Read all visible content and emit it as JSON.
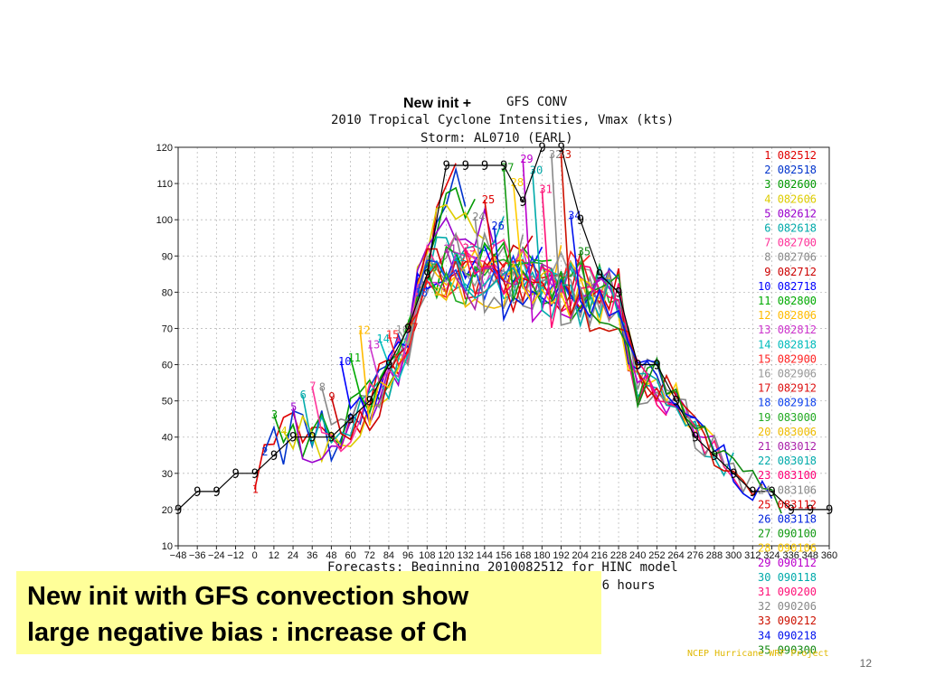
{
  "chart_data": {
    "type": "line",
    "title_prefix": "New init +",
    "title": "GFS CONV",
    "subtitle": "2010 Tropical Cyclone Intensities, Vmax (kts)",
    "storm": "Storm: AL0710 (EARL)",
    "xlabel": "Forecasts: Beginning 2010082512 for HINC model",
    "xlabel2": "Every 6 hours",
    "credit": "NCEP Hurricane WRF Project",
    "xlim": [
      -48,
      360
    ],
    "ylim": [
      10,
      120
    ],
    "x_ticks": [
      -48,
      -36,
      -24,
      -12,
      0,
      12,
      24,
      36,
      48,
      60,
      72,
      84,
      96,
      108,
      120,
      132,
      144,
      156,
      168,
      180,
      192,
      204,
      216,
      228,
      240,
      252,
      264,
      276,
      288,
      300,
      312,
      324,
      336,
      348,
      360
    ],
    "y_ticks": [
      10,
      20,
      30,
      40,
      50,
      60,
      70,
      80,
      90,
      100,
      110,
      120
    ],
    "grid": true,
    "legend_position": "right",
    "best_track": {
      "x": [
        -48,
        -36,
        -24,
        -12,
        0,
        12,
        24,
        36,
        48,
        60,
        72,
        84,
        96,
        108,
        120,
        132,
        144,
        156,
        168,
        180,
        192,
        204,
        216,
        228,
        240,
        252,
        264,
        276,
        288,
        300,
        312,
        324,
        336,
        348,
        360
      ],
      "y": [
        20,
        25,
        25,
        30,
        30,
        35,
        40,
        40,
        40,
        45,
        50,
        60,
        70,
        85,
        115,
        115,
        115,
        115,
        105,
        120,
        120,
        100,
        85,
        80,
        60,
        60,
        50,
        40,
        35,
        30,
        25,
        25,
        20,
        20,
        20
      ]
    },
    "series": [
      {
        "name": "1",
        "label": "082512",
        "color": "#e00000",
        "y0": 30,
        "peak": 112
      },
      {
        "name": "2",
        "label": "082518",
        "color": "#0033cc",
        "y0": 35,
        "peak": 108
      },
      {
        "name": "3",
        "label": "082600",
        "color": "#009900",
        "y0": 40,
        "peak": 104
      },
      {
        "name": "4",
        "label": "082606",
        "color": "#ddcc00",
        "y0": 40,
        "peak": 100
      },
      {
        "name": "5",
        "label": "082612",
        "color": "#9900cc",
        "y0": 45,
        "peak": 96
      },
      {
        "name": "6",
        "label": "082618",
        "color": "#00aaaa",
        "y0": 45,
        "peak": 94
      },
      {
        "name": "7",
        "label": "082700",
        "color": "#ff3399",
        "y0": 50,
        "peak": 92
      },
      {
        "name": "8",
        "label": "082706",
        "color": "#888888",
        "y0": 55,
        "peak": 90
      },
      {
        "name": "9",
        "label": "082712",
        "color": "#cc0000",
        "y0": 55,
        "peak": 89
      },
      {
        "name": "10",
        "label": "082718",
        "color": "#0000ff",
        "y0": 60,
        "peak": 88
      },
      {
        "name": "11",
        "label": "082800",
        "color": "#00aa00",
        "y0": 60,
        "peak": 87
      },
      {
        "name": "12",
        "label": "082806",
        "color": "#ffbb00",
        "y0": 65,
        "peak": 86
      },
      {
        "name": "13",
        "label": "082812",
        "color": "#cc33cc",
        "y0": 65,
        "peak": 86
      },
      {
        "name": "14",
        "label": "082818",
        "color": "#00bbbb",
        "y0": 70,
        "peak": 85
      },
      {
        "name": "15",
        "label": "082900",
        "color": "#ff2222",
        "y0": 70,
        "peak": 85
      },
      {
        "name": "16",
        "label": "082906",
        "color": "#999999",
        "y0": 75,
        "peak": 84
      },
      {
        "name": "17",
        "label": "082912",
        "color": "#dd1111",
        "y0": 75,
        "peak": 84
      },
      {
        "name": "18",
        "label": "082918",
        "color": "#1144ee",
        "y0": 80,
        "peak": 83
      },
      {
        "name": "19",
        "label": "083000",
        "color": "#22aa22",
        "y0": 80,
        "peak": 83
      },
      {
        "name": "20",
        "label": "083006",
        "color": "#eebb00",
        "y0": 85,
        "peak": 82
      },
      {
        "name": "21",
        "label": "083012",
        "color": "#aa22aa",
        "y0": 85,
        "peak": 82
      },
      {
        "name": "22",
        "label": "083018",
        "color": "#00aaaa",
        "y0": 90,
        "peak": 81
      },
      {
        "name": "23",
        "label": "083100",
        "color": "#ff0077",
        "y0": 90,
        "peak": 81
      },
      {
        "name": "24",
        "label": "083106",
        "color": "#888888",
        "y0": 95,
        "peak": 80
      },
      {
        "name": "25",
        "label": "083112",
        "color": "#dd0000",
        "y0": 100,
        "peak": 80
      },
      {
        "name": "26",
        "label": "083118",
        "color": "#0022dd",
        "y0": 105,
        "peak": 79
      },
      {
        "name": "27",
        "label": "090100",
        "color": "#119911",
        "y0": 110,
        "peak": 79
      },
      {
        "name": "28",
        "label": "090106",
        "color": "#ffcc00",
        "y0": 115,
        "peak": 78
      },
      {
        "name": "29",
        "label": "090112",
        "color": "#bb00cc",
        "y0": 115,
        "peak": 78
      },
      {
        "name": "30",
        "label": "090118",
        "color": "#00aaaa",
        "y0": 115,
        "peak": 77
      },
      {
        "name": "31",
        "label": "090200",
        "color": "#ff1177",
        "y0": 115,
        "peak": 77
      },
      {
        "name": "32",
        "label": "090206",
        "color": "#888888",
        "y0": 120,
        "peak": 76
      },
      {
        "name": "33",
        "label": "090212",
        "color": "#cc1100",
        "y0": 120,
        "peak": 76
      },
      {
        "name": "34",
        "label": "090218",
        "color": "#0011ee",
        "y0": 100,
        "peak": 75
      },
      {
        "name": "35",
        "label": "090300",
        "color": "#118811",
        "y0": 85,
        "peak": 75
      }
    ]
  },
  "callout": {
    "line1": "New init with GFS convection show",
    "line2": "large negative bias : increase of Ch"
  },
  "page_number": "12"
}
